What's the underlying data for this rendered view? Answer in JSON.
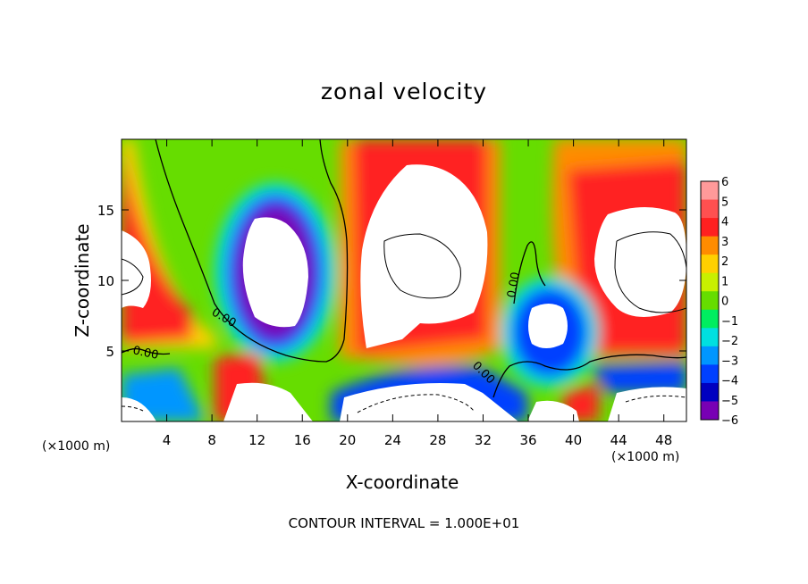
{
  "chart_data": {
    "type": "heatmap",
    "title": "zonal velocity",
    "xlabel": "X-coordinate",
    "ylabel": "Z-coordinate",
    "x_unit_label": "(×1000 m)",
    "x_ticks": [
      4,
      8,
      12,
      16,
      20,
      24,
      28,
      32,
      36,
      40,
      44,
      48
    ],
    "y_ticks": [
      5,
      10,
      15
    ],
    "xlim": [
      0,
      50
    ],
    "ylim": [
      0,
      20
    ],
    "colorbar": {
      "ticks": [
        6,
        5,
        4,
        3,
        2,
        1,
        0,
        -1,
        -2,
        -3,
        -4,
        -5,
        -6
      ],
      "labels": [
        "6",
        "5",
        "4",
        "3",
        "2",
        "1",
        "0",
        "−1",
        "−2",
        "−3",
        "−4",
        "−5",
        "−6"
      ],
      "colors": [
        "#ff9a9a",
        "#ff5050",
        "#ff2020",
        "#ff8c00",
        "#ffd000",
        "#c8f000",
        "#66dd00",
        "#00ee60",
        "#00e0e0",
        "#0096ff",
        "#0040ff",
        "#0000c0",
        "#7800b4"
      ]
    },
    "contour_labels": [
      "0.00",
      "0.00",
      "0.00",
      "0.00"
    ],
    "footer": "CONTOUR INTERVAL = 1.000E+01"
  }
}
